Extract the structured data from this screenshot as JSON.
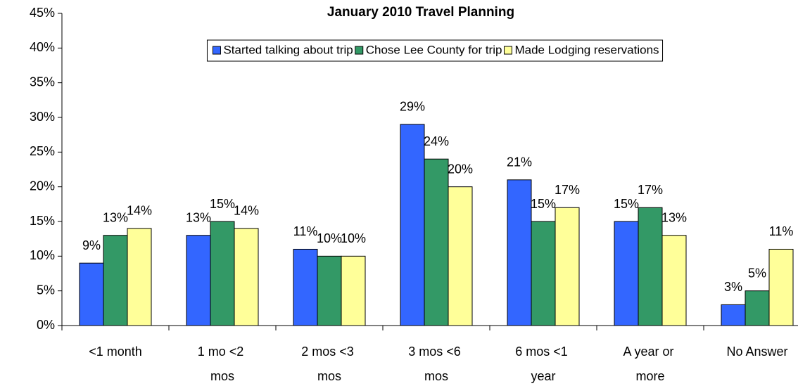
{
  "chart_data": {
    "type": "bar",
    "title": "January 2010 Travel Planning",
    "categories": [
      "<1 month",
      "1 mo <2 mos",
      "2 mos <3 mos",
      "3 mos <6 mos",
      "6 mos <1 year",
      "A year or more",
      "No Answer"
    ],
    "series": [
      {
        "name": "Started talking about trip",
        "color": "#3366ff",
        "values": [
          9,
          13,
          11,
          29,
          21,
          15,
          3
        ],
        "value_labels": [
          "9%",
          "13%",
          "11%",
          "29%",
          "21%",
          "15%",
          "3%"
        ]
      },
      {
        "name": "Chose Lee County for trip",
        "color": "#339966",
        "values": [
          13,
          15,
          10,
          24,
          15,
          17,
          5
        ],
        "value_labels": [
          "13%",
          "15%",
          "10%",
          "24%",
          "15%",
          "17%",
          "5%"
        ]
      },
      {
        "name": "Made Lodging reservations",
        "color": "#ffff99",
        "values": [
          14,
          14,
          10,
          20,
          17,
          13,
          11
        ],
        "value_labels": [
          "14%",
          "14%",
          "10%",
          "20%",
          "17%",
          "13%",
          "11%"
        ]
      }
    ],
    "ylim": [
      0,
      45
    ],
    "yticks": [
      {
        "value": 0,
        "label": "0%"
      },
      {
        "value": 5,
        "label": "5%"
      },
      {
        "value": 10,
        "label": "10%"
      },
      {
        "value": 15,
        "label": "15%"
      },
      {
        "value": 20,
        "label": "20%"
      },
      {
        "value": 25,
        "label": "25%"
      },
      {
        "value": 30,
        "label": "30%"
      },
      {
        "value": 35,
        "label": "35%"
      },
      {
        "value": 40,
        "label": "40%"
      },
      {
        "value": 45,
        "label": "45%"
      }
    ],
    "legend": "top"
  }
}
